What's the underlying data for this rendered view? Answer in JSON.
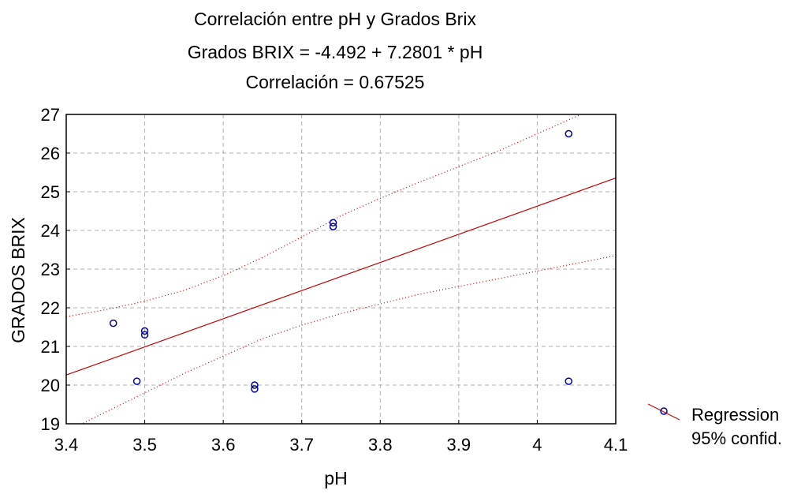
{
  "chart_data": {
    "type": "scatter",
    "title": "Correlación entre pH y Grados Brix",
    "subtitle": "Grados BRIX = -4.492 + 7.2801 * pH",
    "annotation": "Correlación = 0.67525",
    "xlabel": "pH",
    "ylabel": "GRADOS BRIX",
    "xlim": [
      3.4,
      4.1
    ],
    "ylim": [
      19,
      27
    ],
    "xticks": [
      "3.4",
      "3.5",
      "3.6",
      "3.7",
      "3.8",
      "3.9",
      "4",
      "4.1"
    ],
    "yticks": [
      "19",
      "20",
      "21",
      "22",
      "23",
      "24",
      "25",
      "26",
      "27"
    ],
    "grid": true,
    "legend_position": "right",
    "regression": {
      "intercept": -4.492,
      "slope": 7.2801
    },
    "confidence_band": {
      "x": [
        3.4,
        3.45,
        3.5,
        3.55,
        3.6,
        3.65,
        3.7,
        3.75,
        3.8,
        3.85,
        3.9,
        3.95,
        4.0,
        4.05,
        4.1
      ],
      "upper": [
        21.77,
        21.95,
        22.17,
        22.45,
        22.83,
        23.3,
        23.83,
        24.38,
        24.83,
        25.25,
        25.65,
        26.05,
        26.5,
        26.95,
        27.4
      ],
      "lower": [
        18.8,
        19.3,
        19.8,
        20.3,
        20.75,
        21.2,
        21.55,
        21.85,
        22.1,
        22.35,
        22.55,
        22.75,
        22.95,
        23.15,
        23.35
      ]
    },
    "points": [
      {
        "x": 3.46,
        "y": 21.6
      },
      {
        "x": 3.49,
        "y": 20.1
      },
      {
        "x": 3.5,
        "y": 21.4
      },
      {
        "x": 3.5,
        "y": 21.3
      },
      {
        "x": 3.64,
        "y": 20.0
      },
      {
        "x": 3.64,
        "y": 19.9
      },
      {
        "x": 3.74,
        "y": 24.2
      },
      {
        "x": 3.74,
        "y": 24.1
      },
      {
        "x": 4.04,
        "y": 26.5
      },
      {
        "x": 4.04,
        "y": 20.1
      }
    ],
    "legend": [
      "Regression",
      "95% confid."
    ],
    "colors": {
      "line": "#c00000",
      "points": "#0000a0",
      "grid": "#b0b0b0"
    }
  }
}
